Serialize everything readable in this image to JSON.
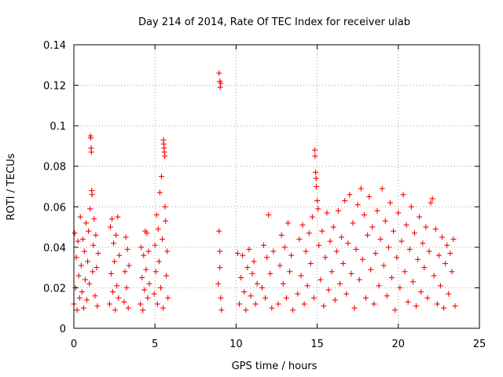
{
  "chart_data": {
    "type": "scatter",
    "title": "Day 214 of 2014, Rate Of TEC Index for receiver ulab",
    "xlabel": "GPS time / hours",
    "ylabel": "ROTI / TECUs",
    "xlim": [
      0,
      25
    ],
    "ylim": [
      0,
      0.14
    ],
    "x_ticks": [
      0,
      5,
      10,
      15,
      20,
      25
    ],
    "x_tick_labels": [
      "0",
      "5",
      "10",
      "15",
      "20",
      "25"
    ],
    "y_ticks": [
      0,
      0.02,
      0.04,
      0.06,
      0.08,
      0.1,
      0.12,
      0.14
    ],
    "y_tick_labels": [
      "0",
      "0.02",
      "0.04",
      "0.06",
      "0.08",
      "0.1",
      "0.12",
      "0.14"
    ],
    "grid": true,
    "marker": "+",
    "color": "#ff0000",
    "series": [
      {
        "name": "ROTI",
        "points": [
          [
            0.0,
            0.012
          ],
          [
            0.05,
            0.047
          ],
          [
            0.1,
            0.02
          ],
          [
            0.15,
            0.035
          ],
          [
            0.2,
            0.009
          ],
          [
            0.25,
            0.043
          ],
          [
            0.3,
            0.026
          ],
          [
            0.35,
            0.015
          ],
          [
            0.4,
            0.055
          ],
          [
            0.45,
            0.031
          ],
          [
            0.5,
            0.018
          ],
          [
            0.55,
            0.044
          ],
          [
            0.6,
            0.01
          ],
          [
            0.65,
            0.038
          ],
          [
            0.7,
            0.024
          ],
          [
            0.75,
            0.052
          ],
          [
            0.8,
            0.014
          ],
          [
            0.85,
            0.033
          ],
          [
            0.9,
            0.048
          ],
          [
            0.95,
            0.022
          ],
          [
            1.0,
            0.059
          ],
          [
            1.02,
            0.095
          ],
          [
            1.04,
            0.094
          ],
          [
            1.06,
            0.089
          ],
          [
            1.08,
            0.087
          ],
          [
            1.1,
            0.068
          ],
          [
            1.12,
            0.066
          ],
          [
            1.15,
            0.028
          ],
          [
            1.2,
            0.041
          ],
          [
            1.25,
            0.054
          ],
          [
            1.3,
            0.016
          ],
          [
            1.35,
            0.046
          ],
          [
            1.4,
            0.03
          ],
          [
            1.45,
            0.011
          ],
          [
            1.5,
            0.037
          ],
          [
            2.2,
            0.012
          ],
          [
            2.25,
            0.05
          ],
          [
            2.3,
            0.027
          ],
          [
            2.35,
            0.054
          ],
          [
            2.4,
            0.018
          ],
          [
            2.45,
            0.042
          ],
          [
            2.5,
            0.033
          ],
          [
            2.55,
            0.009
          ],
          [
            2.6,
            0.046
          ],
          [
            2.65,
            0.021
          ],
          [
            2.7,
            0.055
          ],
          [
            2.75,
            0.015
          ],
          [
            2.8,
            0.036
          ],
          [
            3.1,
            0.013
          ],
          [
            3.15,
            0.028
          ],
          [
            3.2,
            0.045
          ],
          [
            3.25,
            0.02
          ],
          [
            3.3,
            0.039
          ],
          [
            3.35,
            0.01
          ],
          [
            3.4,
            0.031
          ],
          [
            4.1,
            0.012
          ],
          [
            4.15,
            0.04
          ],
          [
            4.2,
            0.025
          ],
          [
            4.25,
            0.009
          ],
          [
            4.3,
            0.036
          ],
          [
            4.35,
            0.019
          ],
          [
            4.4,
            0.048
          ],
          [
            4.45,
            0.029
          ],
          [
            4.5,
            0.047
          ],
          [
            4.55,
            0.015
          ],
          [
            4.6,
            0.038
          ],
          [
            4.65,
            0.022
          ],
          [
            4.95,
            0.017
          ],
          [
            5.0,
            0.041
          ],
          [
            5.05,
            0.028
          ],
          [
            5.1,
            0.056
          ],
          [
            5.15,
            0.012
          ],
          [
            5.2,
            0.049
          ],
          [
            5.25,
            0.033
          ],
          [
            5.3,
            0.067
          ],
          [
            5.35,
            0.02
          ],
          [
            5.4,
            0.075
          ],
          [
            5.45,
            0.044
          ],
          [
            5.5,
            0.01
          ],
          [
            5.52,
            0.093
          ],
          [
            5.54,
            0.091
          ],
          [
            5.56,
            0.089
          ],
          [
            5.58,
            0.087
          ],
          [
            5.6,
            0.085
          ],
          [
            5.62,
            0.06
          ],
          [
            5.65,
            0.053
          ],
          [
            5.7,
            0.026
          ],
          [
            5.75,
            0.038
          ],
          [
            5.8,
            0.015
          ],
          [
            8.95,
            0.126
          ],
          [
            9.0,
            0.122
          ],
          [
            9.02,
            0.119
          ],
          [
            9.05,
            0.121
          ],
          [
            8.95,
            0.048
          ],
          [
            9.0,
            0.03
          ],
          [
            9.05,
            0.015
          ],
          [
            8.9,
            0.022
          ],
          [
            9.1,
            0.009
          ],
          [
            9.0,
            0.038
          ],
          [
            10.1,
            0.037
          ],
          [
            10.2,
            0.012
          ],
          [
            10.3,
            0.025
          ],
          [
            10.4,
            0.036
          ],
          [
            10.5,
            0.018
          ],
          [
            10.6,
            0.009
          ],
          [
            10.7,
            0.03
          ],
          [
            10.8,
            0.039
          ],
          [
            10.9,
            0.016
          ],
          [
            11.0,
            0.027
          ],
          [
            11.1,
            0.033
          ],
          [
            11.2,
            0.012
          ],
          [
            11.3,
            0.022
          ],
          [
            11.6,
            0.02
          ],
          [
            11.7,
            0.041
          ],
          [
            11.8,
            0.015
          ],
          [
            11.9,
            0.035
          ],
          [
            12.0,
            0.056
          ],
          [
            12.1,
            0.027
          ],
          [
            12.2,
            0.01
          ],
          [
            12.3,
            0.038
          ],
          [
            12.6,
            0.012
          ],
          [
            12.7,
            0.031
          ],
          [
            12.8,
            0.046
          ],
          [
            12.9,
            0.022
          ],
          [
            13.0,
            0.04
          ],
          [
            13.1,
            0.015
          ],
          [
            13.2,
            0.052
          ],
          [
            13.3,
            0.028
          ],
          [
            13.4,
            0.036
          ],
          [
            13.5,
            0.009
          ],
          [
            13.8,
            0.017
          ],
          [
            13.9,
            0.044
          ],
          [
            14.0,
            0.026
          ],
          [
            14.1,
            0.051
          ],
          [
            14.2,
            0.012
          ],
          [
            14.3,
            0.038
          ],
          [
            14.4,
            0.021
          ],
          [
            14.5,
            0.047
          ],
          [
            14.6,
            0.032
          ],
          [
            14.7,
            0.055
          ],
          [
            14.8,
            0.015
          ],
          [
            14.85,
            0.088
          ],
          [
            14.87,
            0.085
          ],
          [
            14.9,
            0.077
          ],
          [
            14.93,
            0.074
          ],
          [
            14.95,
            0.07
          ],
          [
            15.0,
            0.063
          ],
          [
            15.05,
            0.059
          ],
          [
            15.1,
            0.041
          ],
          [
            15.2,
            0.024
          ],
          [
            15.3,
            0.048
          ],
          [
            15.4,
            0.011
          ],
          [
            15.5,
            0.035
          ],
          [
            15.6,
            0.057
          ],
          [
            15.7,
            0.019
          ],
          [
            15.8,
            0.043
          ],
          [
            15.9,
            0.028
          ],
          [
            16.0,
            0.05
          ],
          [
            16.1,
            0.014
          ],
          [
            16.2,
            0.038
          ],
          [
            16.3,
            0.058
          ],
          [
            16.4,
            0.022
          ],
          [
            16.5,
            0.045
          ],
          [
            16.6,
            0.032
          ],
          [
            16.7,
            0.063
          ],
          [
            16.8,
            0.017
          ],
          [
            16.9,
            0.042
          ],
          [
            17.0,
            0.066
          ],
          [
            17.1,
            0.027
          ],
          [
            17.2,
            0.052
          ],
          [
            17.3,
            0.01
          ],
          [
            17.4,
            0.039
          ],
          [
            17.5,
            0.061
          ],
          [
            17.6,
            0.024
          ],
          [
            17.7,
            0.069
          ],
          [
            17.8,
            0.034
          ],
          [
            17.9,
            0.056
          ],
          [
            18.0,
            0.015
          ],
          [
            18.1,
            0.046
          ],
          [
            18.2,
            0.065
          ],
          [
            18.3,
            0.029
          ],
          [
            18.4,
            0.05
          ],
          [
            18.5,
            0.012
          ],
          [
            18.6,
            0.037
          ],
          [
            18.7,
            0.058
          ],
          [
            18.8,
            0.021
          ],
          [
            18.9,
            0.044
          ],
          [
            19.0,
            0.069
          ],
          [
            19.1,
            0.031
          ],
          [
            19.2,
            0.053
          ],
          [
            19.3,
            0.016
          ],
          [
            19.4,
            0.04
          ],
          [
            19.5,
            0.062
          ],
          [
            19.6,
            0.025
          ],
          [
            19.7,
            0.048
          ],
          [
            19.8,
            0.009
          ],
          [
            19.9,
            0.035
          ],
          [
            20.0,
            0.057
          ],
          [
            20.1,
            0.02
          ],
          [
            20.2,
            0.043
          ],
          [
            20.3,
            0.066
          ],
          [
            20.4,
            0.028
          ],
          [
            20.5,
            0.051
          ],
          [
            20.6,
            0.013
          ],
          [
            20.7,
            0.039
          ],
          [
            20.8,
            0.06
          ],
          [
            20.9,
            0.023
          ],
          [
            21.0,
            0.047
          ],
          [
            21.1,
            0.011
          ],
          [
            21.2,
            0.034
          ],
          [
            21.3,
            0.055
          ],
          [
            21.4,
            0.018
          ],
          [
            21.5,
            0.042
          ],
          [
            21.6,
            0.03
          ],
          [
            21.7,
            0.05
          ],
          [
            21.8,
            0.015
          ],
          [
            21.9,
            0.038
          ],
          [
            22.0,
            0.062
          ],
          [
            22.1,
            0.064
          ],
          [
            22.2,
            0.026
          ],
          [
            22.3,
            0.049
          ],
          [
            22.4,
            0.012
          ],
          [
            22.5,
            0.036
          ],
          [
            22.6,
            0.021
          ],
          [
            22.7,
            0.045
          ],
          [
            22.8,
            0.01
          ],
          [
            22.9,
            0.032
          ],
          [
            23.0,
            0.041
          ],
          [
            23.1,
            0.017
          ],
          [
            23.2,
            0.037
          ],
          [
            23.3,
            0.028
          ],
          [
            23.4,
            0.044
          ],
          [
            23.5,
            0.011
          ]
        ]
      }
    ]
  }
}
